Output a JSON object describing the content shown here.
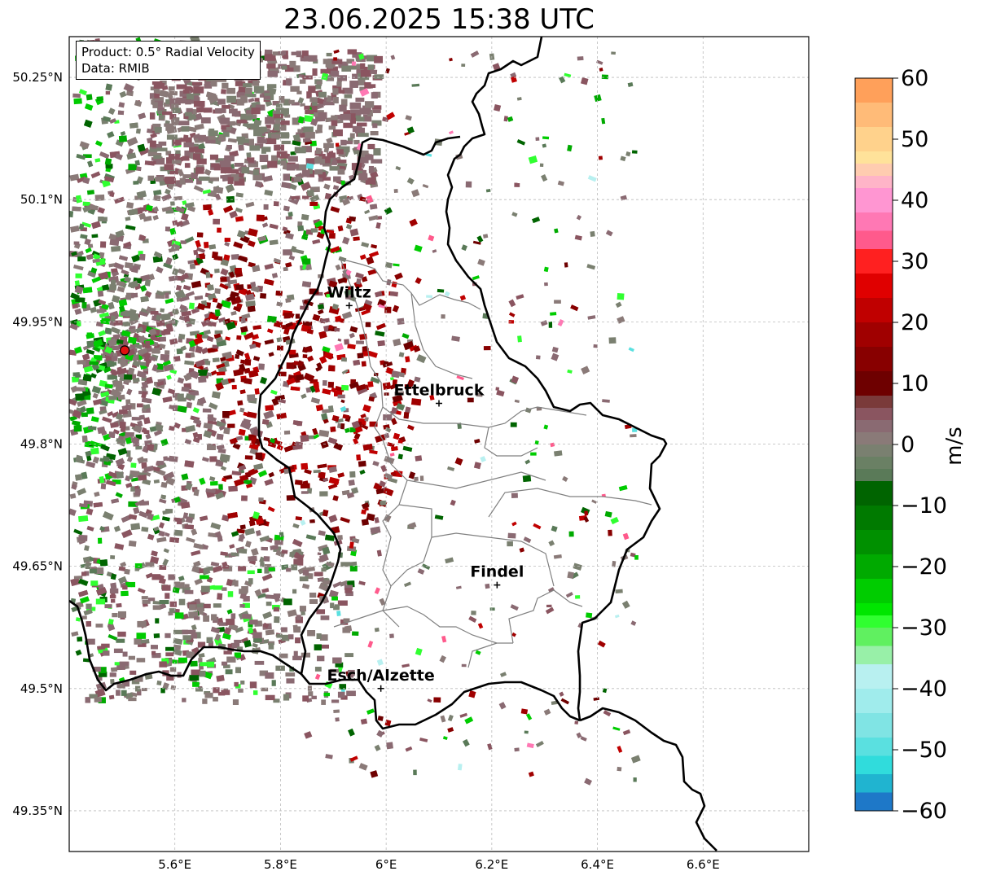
{
  "title": "23.06.2025 15:38 UTC",
  "info": {
    "product": "Product: 0.5° Radial Velocity",
    "data": "Data: RMIB"
  },
  "map": {
    "lon_range": [
      5.4,
      6.8
    ],
    "lat_range": [
      49.3,
      50.3
    ],
    "lat_ticks": [
      {
        "value": 50.25,
        "label": "50.25°N"
      },
      {
        "value": 50.1,
        "label": "50.1°N"
      },
      {
        "value": 49.95,
        "label": "49.95°N"
      },
      {
        "value": 49.8,
        "label": "49.8°N"
      },
      {
        "value": 49.65,
        "label": "49.65°N"
      },
      {
        "value": 49.5,
        "label": "49.5°N"
      },
      {
        "value": 49.35,
        "label": "49.35°N"
      }
    ],
    "lon_ticks": [
      {
        "value": 5.6,
        "label": "5.6°E"
      },
      {
        "value": 5.8,
        "label": "5.8°E"
      },
      {
        "value": 6.0,
        "label": "6°E"
      },
      {
        "value": 6.2,
        "label": "6.2°E"
      },
      {
        "value": 6.4,
        "label": "6.4°E"
      },
      {
        "value": 6.6,
        "label": "6.6°E"
      }
    ],
    "gridlines": true,
    "radar_site": {
      "lon": 5.505,
      "lat": 49.915
    },
    "cities": [
      {
        "name": "Wiltz",
        "lon": 5.93,
        "lat": 49.97
      },
      {
        "name": "Ettelbruck",
        "lon": 6.1,
        "lat": 49.85
      },
      {
        "name": "Findel",
        "lon": 6.21,
        "lat": 49.627
      },
      {
        "name": "Esch/Alzette",
        "lon": 5.99,
        "lat": 49.5
      }
    ]
  },
  "colorbar": {
    "label": "m/s",
    "min": -60,
    "max": 60,
    "ticks": [
      {
        "value": 60,
        "label": "60"
      },
      {
        "value": 50,
        "label": "50"
      },
      {
        "value": 40,
        "label": "40"
      },
      {
        "value": 30,
        "label": "30"
      },
      {
        "value": 20,
        "label": "20"
      },
      {
        "value": 10,
        "label": "10"
      },
      {
        "value": 0,
        "label": "0"
      },
      {
        "value": -10,
        "label": "−10"
      },
      {
        "value": -20,
        "label": "−20"
      },
      {
        "value": -30,
        "label": "−30"
      },
      {
        "value": -40,
        "label": "−40"
      },
      {
        "value": -50,
        "label": "−50"
      },
      {
        "value": -60,
        "label": "−60"
      }
    ],
    "stops": [
      {
        "from": 56,
        "to": 60,
        "color": "#ffa05a"
      },
      {
        "from": 52,
        "to": 56,
        "color": "#ffbb78"
      },
      {
        "from": 48,
        "to": 52,
        "color": "#ffd28c"
      },
      {
        "from": 46,
        "to": 48,
        "color": "#ffe29a"
      },
      {
        "from": 44,
        "to": 46,
        "color": "#ffccb0"
      },
      {
        "from": 42,
        "to": 44,
        "color": "#ffb4c8"
      },
      {
        "from": 38,
        "to": 42,
        "color": "#ff96d2"
      },
      {
        "from": 35,
        "to": 38,
        "color": "#ff78b4"
      },
      {
        "from": 32,
        "to": 35,
        "color": "#ff5a8c"
      },
      {
        "from": 28,
        "to": 32,
        "color": "#ff2020"
      },
      {
        "from": 24,
        "to": 28,
        "color": "#e00000"
      },
      {
        "from": 20,
        "to": 24,
        "color": "#c00000"
      },
      {
        "from": 16,
        "to": 20,
        "color": "#a00000"
      },
      {
        "from": 12,
        "to": 16,
        "color": "#880000"
      },
      {
        "from": 8,
        "to": 12,
        "color": "#6e0000"
      },
      {
        "from": 6,
        "to": 8,
        "color": "#7a3a3a"
      },
      {
        "from": 4,
        "to": 6,
        "color": "#8a5560"
      },
      {
        "from": 2,
        "to": 4,
        "color": "#8a6a72"
      },
      {
        "from": 0,
        "to": 2,
        "color": "#8a7a78"
      },
      {
        "from": -2,
        "to": 0,
        "color": "#7a8070"
      },
      {
        "from": -4,
        "to": -2,
        "color": "#6a8064"
      },
      {
        "from": -6,
        "to": -4,
        "color": "#5a7a58"
      },
      {
        "from": -10,
        "to": -6,
        "color": "#006400"
      },
      {
        "from": -14,
        "to": -10,
        "color": "#007a00"
      },
      {
        "from": -18,
        "to": -14,
        "color": "#009000"
      },
      {
        "from": -22,
        "to": -18,
        "color": "#00aa00"
      },
      {
        "from": -26,
        "to": -22,
        "color": "#00cc00"
      },
      {
        "from": -28,
        "to": -26,
        "color": "#00e600"
      },
      {
        "from": -30,
        "to": -28,
        "color": "#30ff30"
      },
      {
        "from": -33,
        "to": -30,
        "color": "#60f060"
      },
      {
        "from": -36,
        "to": -33,
        "color": "#98f0a8"
      },
      {
        "from": -40,
        "to": -36,
        "color": "#b8f0f0"
      },
      {
        "from": -44,
        "to": -40,
        "color": "#a0ecec"
      },
      {
        "from": -48,
        "to": -44,
        "color": "#80e4e4"
      },
      {
        "from": -51,
        "to": -48,
        "color": "#5ae0e0"
      },
      {
        "from": -54,
        "to": -51,
        "color": "#30dcdc"
      },
      {
        "from": -57,
        "to": -54,
        "color": "#20b4d0"
      },
      {
        "from": -60,
        "to": -57,
        "color": "#1e78c8"
      }
    ]
  }
}
